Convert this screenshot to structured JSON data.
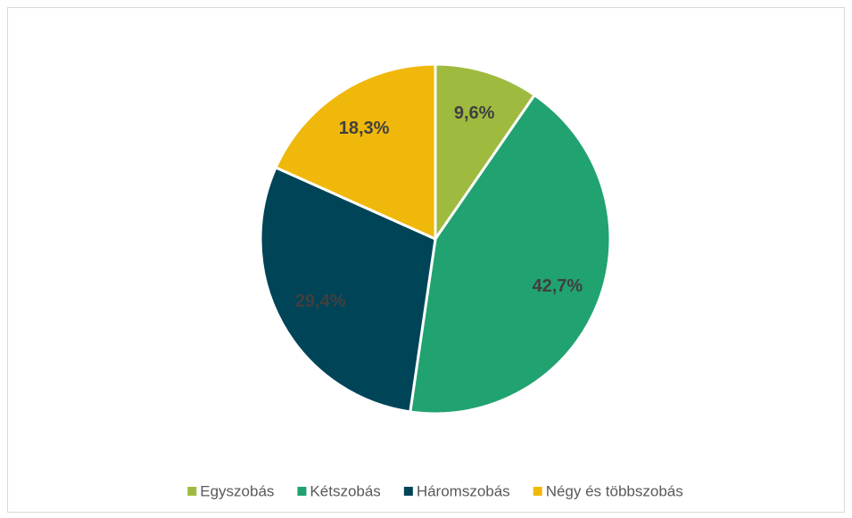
{
  "chart_data": {
    "type": "pie",
    "categories": [
      "Egyszobás",
      "Kétszobás",
      "Háromszobás",
      "Négy és többszobás"
    ],
    "values": [
      9.6,
      42.7,
      29.4,
      18.3
    ],
    "value_labels": [
      "9,6%",
      "42,7%",
      "29,4%",
      "18,3%"
    ],
    "colors": [
      "#9fbb3f",
      "#21a271",
      "#004458",
      "#f0b80a"
    ],
    "legend": "bottom"
  }
}
